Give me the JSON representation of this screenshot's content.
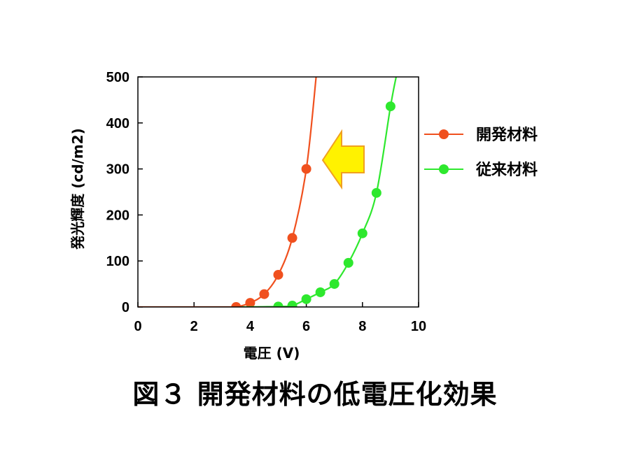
{
  "caption": "図３  開発材料の低電圧化効果",
  "arrow_colors": {
    "fill": "#FFF200",
    "stroke": "#F0A020"
  },
  "chart_data": {
    "type": "line",
    "xlabel": "電圧 (V)",
    "ylabel": "発光輝度 (cd/m2)",
    "xlim": [
      0,
      10
    ],
    "ylim": [
      0,
      500
    ],
    "xticks": [
      0,
      2,
      4,
      6,
      8,
      10
    ],
    "yticks": [
      0,
      100,
      200,
      300,
      400,
      500
    ],
    "grid": false,
    "legend_position": "right",
    "series": [
      {
        "name": "開発材料",
        "color": "#F0501E",
        "points": [
          [
            3.5,
            0
          ],
          [
            4.0,
            9
          ],
          [
            4.5,
            28
          ],
          [
            5.0,
            70
          ],
          [
            5.5,
            150
          ],
          [
            6.0,
            300
          ]
        ],
        "curve": [
          [
            0,
            0
          ],
          [
            3.2,
            0
          ],
          [
            3.5,
            0
          ],
          [
            4.0,
            9
          ],
          [
            4.5,
            28
          ],
          [
            5.0,
            70
          ],
          [
            5.5,
            150
          ],
          [
            6.0,
            300
          ],
          [
            6.35,
            500
          ]
        ]
      },
      {
        "name": "従来材料",
        "color": "#2EE82E",
        "points": [
          [
            5.0,
            1
          ],
          [
            5.5,
            3
          ],
          [
            6.0,
            17
          ],
          [
            6.5,
            32
          ],
          [
            7.0,
            50
          ],
          [
            7.5,
            96
          ],
          [
            8.0,
            160
          ],
          [
            8.5,
            248
          ],
          [
            9.0,
            436
          ]
        ],
        "curve": [
          [
            3.7,
            0
          ],
          [
            5.0,
            1
          ],
          [
            5.5,
            3
          ],
          [
            6.0,
            17
          ],
          [
            6.5,
            32
          ],
          [
            7.0,
            50
          ],
          [
            7.5,
            96
          ],
          [
            8.0,
            160
          ],
          [
            8.5,
            248
          ],
          [
            9.0,
            436
          ],
          [
            9.2,
            500
          ]
        ]
      }
    ]
  }
}
